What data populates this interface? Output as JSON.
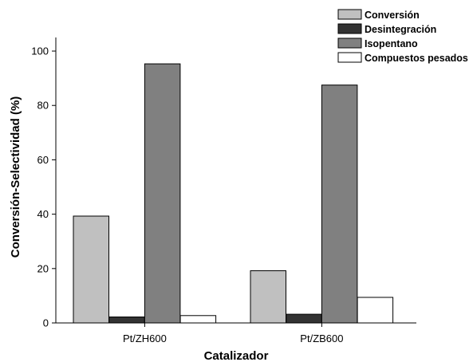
{
  "chart_data": {
    "type": "bar",
    "categories": [
      "Pt/ZH600",
      "Pt/ZB600"
    ],
    "series": [
      {
        "name": "Conversión",
        "values": [
          39.3,
          19.2
        ],
        "color": "#c0c0c0"
      },
      {
        "name": "Desintegración",
        "values": [
          2.2,
          3.2
        ],
        "color": "#333333"
      },
      {
        "name": "Isopentano",
        "values": [
          95.3,
          87.5
        ],
        "color": "#808080"
      },
      {
        "name": "Compuestos pesados",
        "values": [
          2.7,
          9.4
        ],
        "color": "#ffffff"
      }
    ],
    "xlabel": "Catalizador",
    "ylabel": "Conversión-Selectividad (%)",
    "ylim": [
      0,
      105
    ],
    "yticks": [
      0,
      20,
      40,
      60,
      80,
      100
    ],
    "grid": false,
    "legend_position": "top-right"
  }
}
